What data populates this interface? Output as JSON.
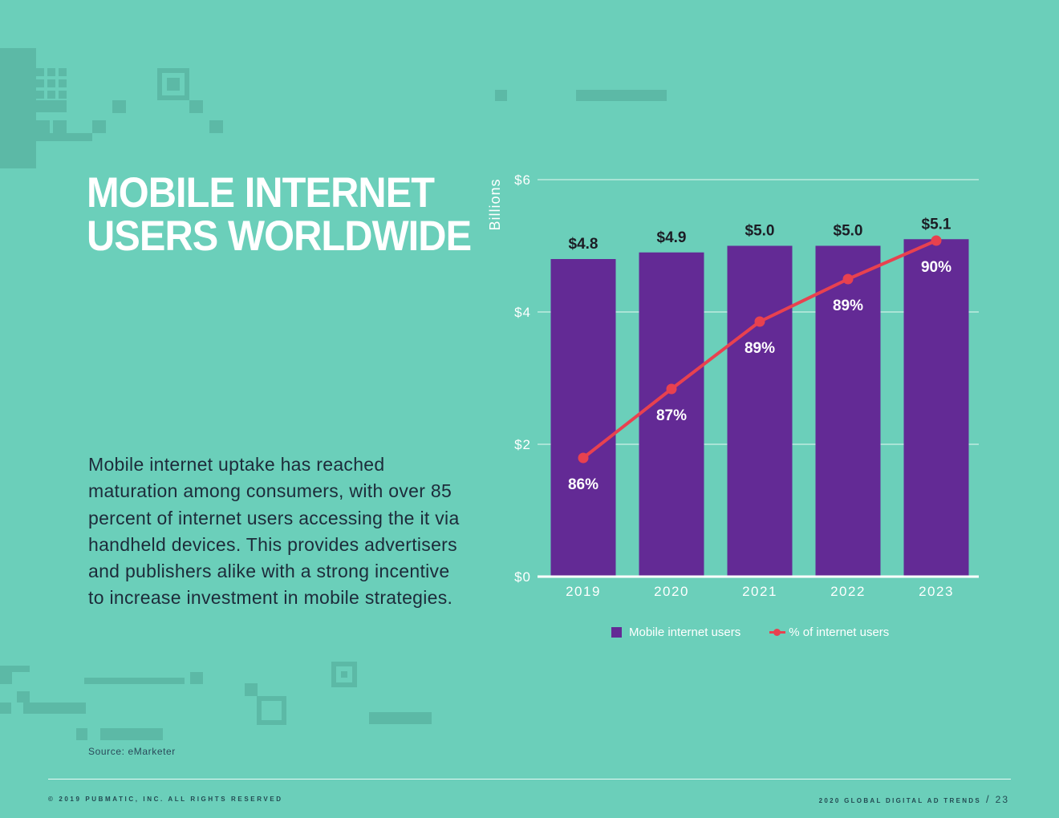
{
  "page": {
    "title_lines": [
      "MOBILE INTERNET",
      "USERS WORLDWIDE"
    ],
    "body": "Mobile internet uptake has reached maturation among consumers, with over 85 percent of internet users accessing the it via handheld devices. This provides advertisers and publishers alike with a strong incentive to increase investment in mobile strategies.",
    "source": "Source: eMarketer"
  },
  "footer": {
    "copyright": "© 2019 PUBMATIC, INC. ALL RIGHTS RESERVED",
    "report": "2020 GLOBAL DIGITAL AD TRENDS",
    "separator": "/",
    "page_number": "23"
  },
  "colors": {
    "background": "#6bcfba",
    "bar": "#632a95",
    "line": "#e8414f",
    "deco": "#5cb9a6"
  },
  "chart_data": {
    "type": "bar",
    "title": "",
    "ylabel": "Billions",
    "xlabel": "",
    "ylim": [
      0,
      6
    ],
    "yticks": [
      0,
      2,
      4,
      6
    ],
    "ytick_labels": [
      "$0",
      "$2",
      "$4",
      "$6"
    ],
    "categories": [
      "2019",
      "2020",
      "2021",
      "2022",
      "2023"
    ],
    "series": [
      {
        "name": "Mobile internet users",
        "type": "bar",
        "values": [
          4.8,
          4.9,
          5.0,
          5.0,
          5.1
        ],
        "labels": [
          "$4.8",
          "$4.9",
          "$5.0",
          "$5.0",
          "$5.1"
        ]
      },
      {
        "name": "% of internet users",
        "type": "line",
        "values": [
          86,
          87,
          89,
          89,
          90
        ],
        "labels": [
          "86%",
          "87%",
          "89%",
          "89%",
          "90%"
        ]
      }
    ],
    "legend": [
      "Mobile internet users",
      "% of internet users"
    ],
    "legend_position": "bottom",
    "grid": true
  }
}
